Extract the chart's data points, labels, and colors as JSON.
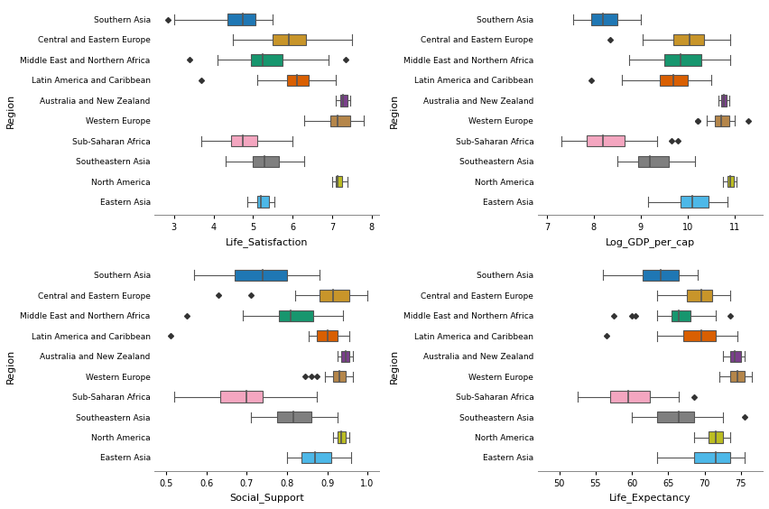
{
  "regions": [
    "Southern Asia",
    "Central and Eastern Europe",
    "Middle East and Northern Africa",
    "Latin America and Caribbean",
    "Australia and New Zealand",
    "Western Europe",
    "Sub-Saharan Africa",
    "Southeastern Asia",
    "North America",
    "Eastern Asia"
  ],
  "colors": {
    "Southern Asia": "#1f77b4",
    "Central and Eastern Europe": "#c8952a",
    "Middle East and Northern Africa": "#17966e",
    "Latin America and Caribbean": "#d95f02",
    "Australia and New Zealand": "#7b3f8c",
    "Western Europe": "#b5864a",
    "Sub-Saharan Africa": "#f4a6c0",
    "Southeastern Asia": "#7f7f7f",
    "North America": "#bcbd22",
    "Eastern Asia": "#4db8e8"
  },
  "life_satisfaction": {
    "Southern Asia": {
      "whislo": 3.0,
      "q1": 4.35,
      "med": 4.75,
      "q3": 5.05,
      "whishi": 5.5,
      "fliers": [
        2.85
      ]
    },
    "Central and Eastern Europe": {
      "whislo": 4.5,
      "q1": 5.5,
      "med": 5.9,
      "q3": 6.35,
      "whishi": 7.5,
      "fliers": []
    },
    "Middle East and Northern Africa": {
      "whislo": 4.1,
      "q1": 4.95,
      "med": 5.25,
      "q3": 5.75,
      "whishi": 6.9,
      "fliers": [
        3.4,
        7.35
      ]
    },
    "Latin America and Caribbean": {
      "whislo": 5.1,
      "q1": 5.85,
      "med": 6.1,
      "q3": 6.4,
      "whishi": 7.1,
      "fliers": [
        3.7
      ]
    },
    "Australia and New Zealand": {
      "whislo": 7.1,
      "q1": 7.2,
      "med": 7.28,
      "q3": 7.38,
      "whishi": 7.45,
      "fliers": []
    },
    "Western Europe": {
      "whislo": 6.3,
      "q1": 6.95,
      "med": 7.15,
      "q3": 7.45,
      "whishi": 7.8,
      "fliers": []
    },
    "Sub-Saharan Africa": {
      "whislo": 3.7,
      "q1": 4.45,
      "med": 4.75,
      "q3": 5.1,
      "whishi": 6.0,
      "fliers": []
    },
    "Southeastern Asia": {
      "whislo": 4.3,
      "q1": 5.0,
      "med": 5.3,
      "q3": 5.65,
      "whishi": 6.3,
      "fliers": []
    },
    "North America": {
      "whislo": 7.0,
      "q1": 7.1,
      "med": 7.15,
      "q3": 7.25,
      "whishi": 7.4,
      "fliers": []
    },
    "Eastern Asia": {
      "whislo": 4.85,
      "q1": 5.1,
      "med": 5.2,
      "q3": 5.4,
      "whishi": 5.55,
      "fliers": []
    }
  },
  "log_gdp": {
    "Southern Asia": {
      "whislo": 7.55,
      "q1": 7.95,
      "med": 8.2,
      "q3": 8.5,
      "whishi": 9.0,
      "fliers": []
    },
    "Central and Eastern Europe": {
      "whislo": 9.05,
      "q1": 9.7,
      "med": 10.05,
      "q3": 10.35,
      "whishi": 10.9,
      "fliers": [
        8.35
      ]
    },
    "Middle East and Northern Africa": {
      "whislo": 8.75,
      "q1": 9.5,
      "med": 9.85,
      "q3": 10.3,
      "whishi": 10.9,
      "fliers": []
    },
    "Latin America and Caribbean": {
      "whislo": 8.6,
      "q1": 9.4,
      "med": 9.7,
      "q3": 10.0,
      "whishi": 10.5,
      "fliers": [
        7.95
      ]
    },
    "Australia and New Zealand": {
      "whislo": 10.65,
      "q1": 10.72,
      "med": 10.77,
      "q3": 10.83,
      "whishi": 10.88,
      "fliers": []
    },
    "Western Europe": {
      "whislo": 10.4,
      "q1": 10.58,
      "med": 10.72,
      "q3": 10.88,
      "whishi": 11.0,
      "fliers": [
        10.22,
        10.22,
        11.3
      ]
    },
    "Sub-Saharan Africa": {
      "whislo": 7.3,
      "q1": 7.85,
      "med": 8.2,
      "q3": 8.65,
      "whishi": 9.35,
      "fliers": [
        9.65,
        9.8
      ]
    },
    "Southeastern Asia": {
      "whislo": 8.5,
      "q1": 8.95,
      "med": 9.2,
      "q3": 9.6,
      "whishi": 10.15,
      "fliers": []
    },
    "North America": {
      "whislo": 10.75,
      "q1": 10.85,
      "med": 10.9,
      "q3": 10.98,
      "whishi": 11.05,
      "fliers": []
    },
    "Eastern Asia": {
      "whislo": 9.15,
      "q1": 9.85,
      "med": 10.1,
      "q3": 10.45,
      "whishi": 10.85,
      "fliers": []
    }
  },
  "social_support": {
    "Southern Asia": {
      "whislo": 0.57,
      "q1": 0.67,
      "med": 0.74,
      "q3": 0.8,
      "whishi": 0.88,
      "fliers": []
    },
    "Central and Eastern Europe": {
      "whislo": 0.82,
      "q1": 0.88,
      "med": 0.915,
      "q3": 0.955,
      "whishi": 1.0,
      "fliers": [
        0.63,
        0.71
      ]
    },
    "Middle East and Northern Africa": {
      "whislo": 0.69,
      "q1": 0.78,
      "med": 0.81,
      "q3": 0.865,
      "whishi": 0.94,
      "fliers": [
        0.55
      ]
    },
    "Latin America and Caribbean": {
      "whislo": 0.855,
      "q1": 0.875,
      "med": 0.9,
      "q3": 0.925,
      "whishi": 0.955,
      "fliers": [
        0.51
      ]
    },
    "Australia and New Zealand": {
      "whislo": 0.925,
      "q1": 0.935,
      "med": 0.945,
      "q3": 0.955,
      "whishi": 0.965,
      "fliers": []
    },
    "Western Europe": {
      "whislo": 0.895,
      "q1": 0.915,
      "med": 0.93,
      "q3": 0.945,
      "whishi": 0.965,
      "fliers": [
        0.845,
        0.86,
        0.875
      ]
    },
    "Sub-Saharan Africa": {
      "whislo": 0.52,
      "q1": 0.635,
      "med": 0.7,
      "q3": 0.74,
      "whishi": 0.875,
      "fliers": []
    },
    "Southeastern Asia": {
      "whislo": 0.71,
      "q1": 0.775,
      "med": 0.815,
      "q3": 0.86,
      "whishi": 0.925,
      "fliers": []
    },
    "North America": {
      "whislo": 0.915,
      "q1": 0.925,
      "med": 0.935,
      "q3": 0.945,
      "whishi": 0.955,
      "fliers": []
    },
    "Eastern Asia": {
      "whislo": 0.8,
      "q1": 0.835,
      "med": 0.87,
      "q3": 0.91,
      "whishi": 0.96,
      "fliers": []
    }
  },
  "life_expectancy": {
    "Southern Asia": {
      "whislo": 56.0,
      "q1": 61.5,
      "med": 64.0,
      "q3": 66.5,
      "whishi": 69.0,
      "fliers": []
    },
    "Central and Eastern Europe": {
      "whislo": 63.5,
      "q1": 67.5,
      "med": 69.5,
      "q3": 71.0,
      "whishi": 73.5,
      "fliers": []
    },
    "Middle East and Northern Africa": {
      "whislo": 63.5,
      "q1": 65.5,
      "med": 66.5,
      "q3": 68.0,
      "whishi": 71.5,
      "fliers": [
        57.5,
        60.0,
        60.5,
        73.5
      ]
    },
    "Latin America and Caribbean": {
      "whislo": 63.5,
      "q1": 67.0,
      "med": 69.5,
      "q3": 71.5,
      "whishi": 74.5,
      "fliers": [
        56.5
      ]
    },
    "Australia and New Zealand": {
      "whislo": 72.5,
      "q1": 73.5,
      "med": 74.2,
      "q3": 75.0,
      "whishi": 75.5,
      "fliers": []
    },
    "Western Europe": {
      "whislo": 72.0,
      "q1": 73.5,
      "med": 74.5,
      "q3": 75.5,
      "whishi": 76.5,
      "fliers": []
    },
    "Sub-Saharan Africa": {
      "whislo": 52.5,
      "q1": 57.0,
      "med": 59.5,
      "q3": 62.5,
      "whishi": 66.5,
      "fliers": [
        68.5
      ]
    },
    "Southeastern Asia": {
      "whislo": 60.0,
      "q1": 63.5,
      "med": 66.5,
      "q3": 68.5,
      "whishi": 72.5,
      "fliers": [
        75.5
      ]
    },
    "North America": {
      "whislo": 68.5,
      "q1": 70.5,
      "med": 71.5,
      "q3": 72.5,
      "whishi": 73.5,
      "fliers": []
    },
    "Eastern Asia": {
      "whislo": 63.5,
      "q1": 68.5,
      "med": 71.5,
      "q3": 73.5,
      "whishi": 75.5,
      "fliers": []
    }
  },
  "background_color": "#ffffff",
  "subplots": [
    {
      "key": "life_satisfaction",
      "xlabel": "Life_Satisfaction",
      "xlim": [
        2.5,
        8.2
      ],
      "xticks": [
        3,
        4,
        5,
        6,
        7,
        8
      ]
    },
    {
      "key": "log_gdp",
      "xlabel": "Log_GDP_per_cap",
      "xlim": [
        6.8,
        11.6
      ],
      "xticks": [
        7,
        8,
        9,
        10,
        11
      ]
    },
    {
      "key": "social_support",
      "xlabel": "Social_Support",
      "xlim": [
        0.47,
        1.03
      ],
      "xticks": [
        0.5,
        0.6,
        0.7,
        0.8,
        0.9,
        1.0
      ]
    },
    {
      "key": "life_expectancy",
      "xlabel": "Life_Expectancy",
      "xlim": [
        47,
        78
      ],
      "xticks": [
        50,
        55,
        60,
        65,
        70,
        75
      ]
    }
  ]
}
